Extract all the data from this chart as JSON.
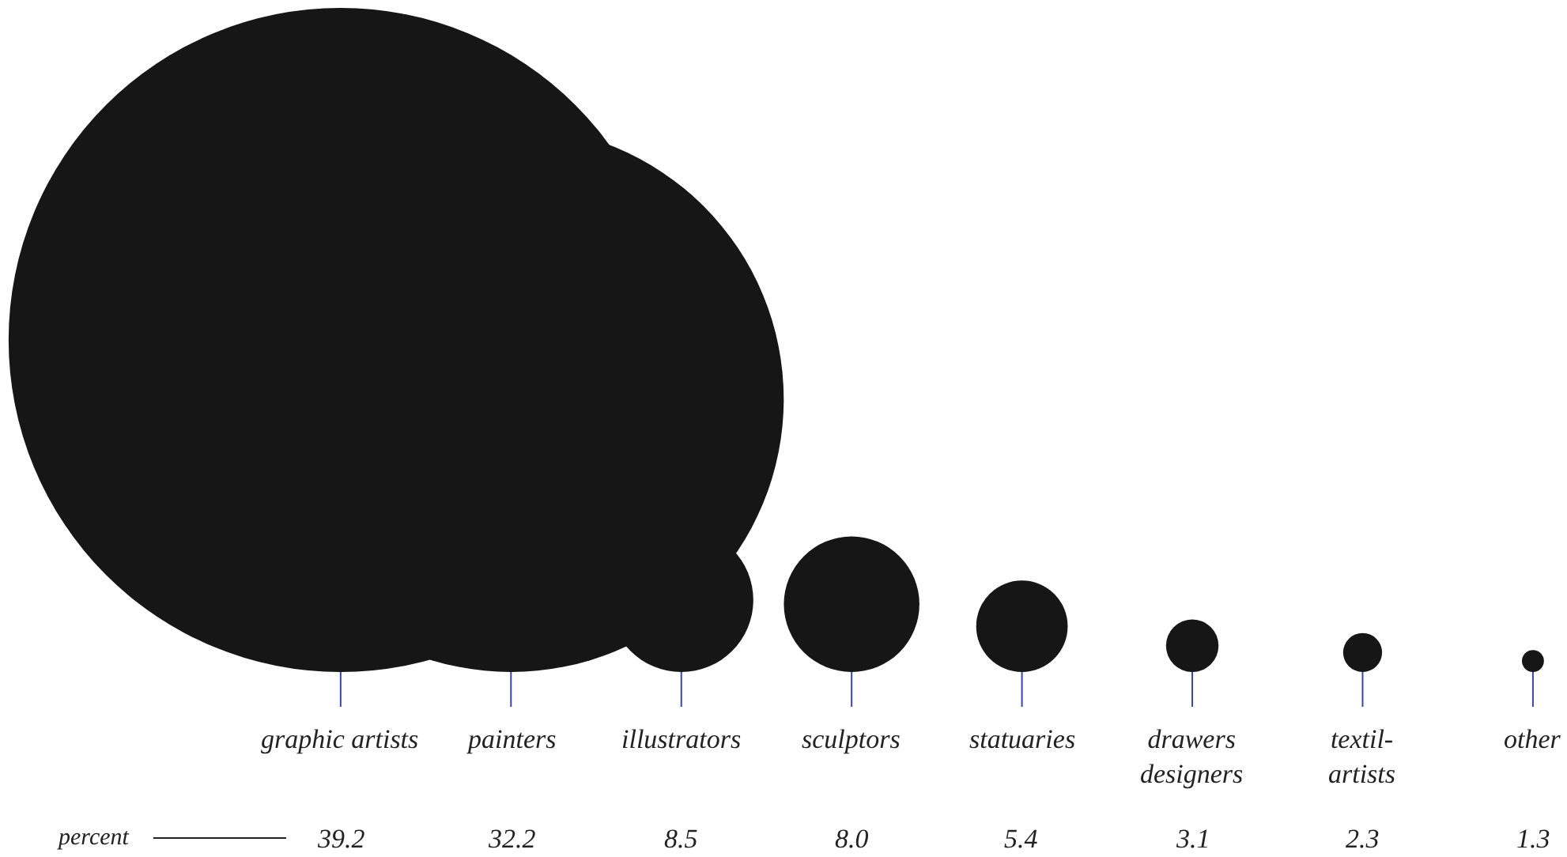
{
  "chart_data": {
    "type": "other",
    "categories": [
      "graphic artists",
      "painters",
      "illustrators",
      "sculptors",
      "statuaries",
      "drawers\ndesigners",
      "textil-\nartists",
      "other"
    ],
    "values": [
      39.2,
      32.2,
      8.5,
      8.0,
      5.4,
      3.1,
      2.3,
      1.3
    ],
    "value_labels": [
      "39.2",
      "32.2",
      "8.5",
      "8.0",
      "5.4",
      "3.1",
      "2.3",
      "1.3"
    ],
    "color": "#161616",
    "annotations": [
      "percent"
    ]
  }
}
